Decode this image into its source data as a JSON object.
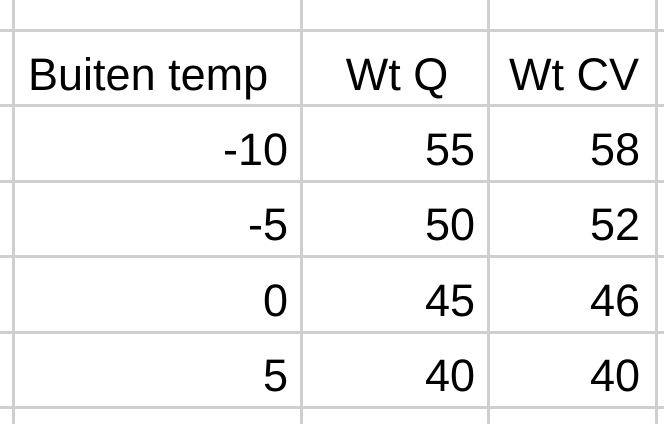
{
  "sheet": {
    "headers": [
      "Buiten temp",
      "Wt Q",
      "Wt CV"
    ],
    "rows": [
      [
        "-10",
        "55",
        "58"
      ],
      [
        "-5",
        "50",
        "52"
      ],
      [
        "0",
        "45",
        "46"
      ],
      [
        "5",
        "40",
        "40"
      ]
    ],
    "grid_color": "#cfcfcf"
  }
}
